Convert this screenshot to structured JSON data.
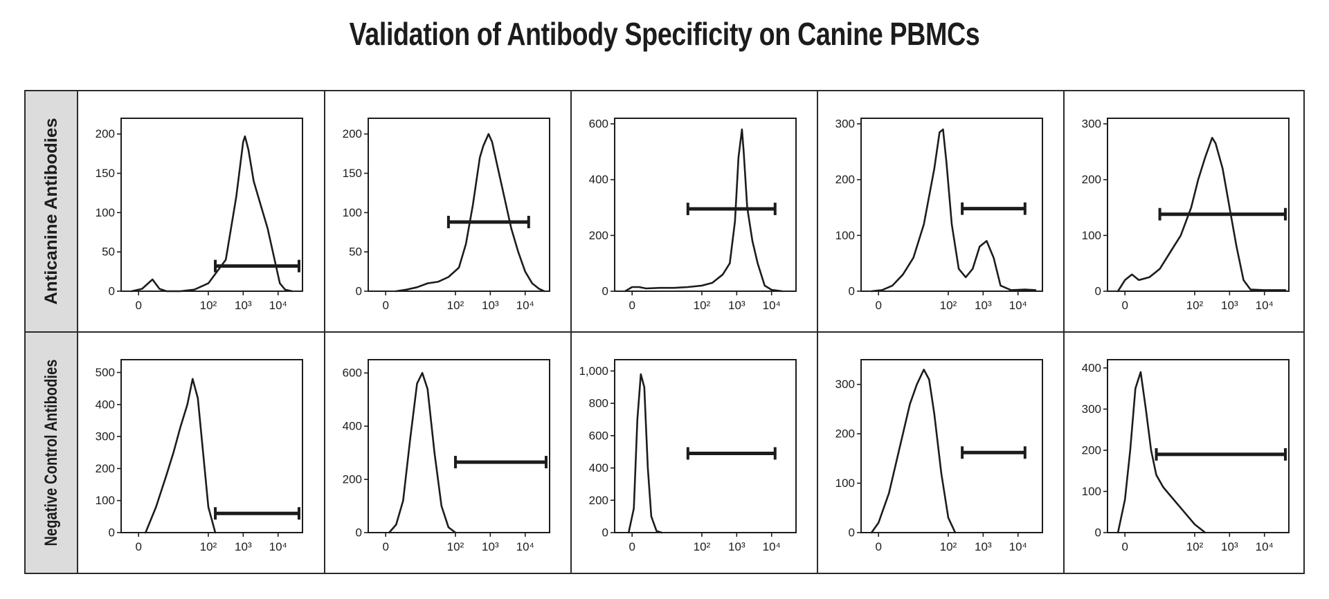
{
  "title": "Validation of Antibody Specificity on Canine PBMCs",
  "row_labels": [
    "Anticanine Antibodies",
    "Negative Control Antibodies"
  ],
  "x_tick_labels": [
    "0",
    "10²",
    "10³",
    "10⁴"
  ],
  "colors": {
    "line": "#1c1c1c",
    "row_label_bg": "#dcdcdc",
    "frame": "#2a2a2a"
  },
  "chart_data": [
    {
      "type": "line",
      "panel": "anticanine-1",
      "xscale": "log",
      "xlim": [
        -0.5,
        4.7
      ],
      "ylim": [
        0,
        220
      ],
      "yticks": [
        0,
        50,
        100,
        150,
        200
      ],
      "x": [
        -0.2,
        0.1,
        0.4,
        0.6,
        0.8,
        1.2,
        1.6,
        2.0,
        2.5,
        2.8,
        3.0,
        3.05,
        3.15,
        3.3,
        3.5,
        3.7,
        3.9,
        4.05,
        4.2,
        4.4
      ],
      "y": [
        0,
        3,
        15,
        3,
        0,
        0,
        2,
        10,
        40,
        120,
        190,
        197,
        180,
        140,
        110,
        80,
        40,
        10,
        2,
        0
      ],
      "gate": {
        "x": [
          2.2,
          4.6
        ],
        "y": 32
      }
    },
    {
      "type": "line",
      "panel": "anticanine-2",
      "xscale": "log",
      "xlim": [
        -0.5,
        4.7
      ],
      "ylim": [
        0,
        220
      ],
      "yticks": [
        0,
        50,
        100,
        150,
        200
      ],
      "x": [
        0.3,
        0.6,
        0.9,
        1.2,
        1.5,
        1.8,
        2.1,
        2.3,
        2.5,
        2.7,
        2.8,
        2.95,
        3.05,
        3.2,
        3.4,
        3.6,
        3.8,
        4.0,
        4.2,
        4.4,
        4.55
      ],
      "y": [
        0,
        2,
        5,
        10,
        12,
        18,
        30,
        60,
        110,
        170,
        185,
        200,
        190,
        160,
        120,
        80,
        50,
        25,
        10,
        3,
        0
      ],
      "gate": {
        "x": [
          1.8,
          4.1
        ],
        "y": 88
      }
    },
    {
      "type": "line",
      "panel": "anticanine-3",
      "xscale": "log",
      "xlim": [
        -0.5,
        4.7
      ],
      "ylim": [
        0,
        620
      ],
      "yticks": [
        0,
        200,
        400,
        600
      ],
      "x": [
        -0.2,
        0.0,
        0.2,
        0.4,
        0.8,
        1.2,
        1.6,
        2.0,
        2.3,
        2.6,
        2.8,
        2.95,
        3.05,
        3.15,
        3.2,
        3.3,
        3.45,
        3.6,
        3.8,
        4.0,
        4.3
      ],
      "y": [
        0,
        15,
        15,
        10,
        12,
        12,
        15,
        20,
        30,
        60,
        100,
        250,
        480,
        580,
        500,
        300,
        180,
        100,
        20,
        5,
        0
      ],
      "gate": {
        "x": [
          1.6,
          4.1
        ],
        "y": 295
      }
    },
    {
      "type": "line",
      "panel": "anticanine-4",
      "xscale": "log",
      "xlim": [
        -0.5,
        4.7
      ],
      "ylim": [
        0,
        310
      ],
      "yticks": [
        0,
        100,
        200,
        300
      ],
      "x": [
        -0.2,
        0.1,
        0.4,
        0.7,
        1.0,
        1.3,
        1.6,
        1.75,
        1.85,
        1.95,
        2.1,
        2.3,
        2.5,
        2.7,
        2.9,
        3.1,
        3.3,
        3.5,
        3.8,
        4.2,
        4.5
      ],
      "y": [
        0,
        2,
        10,
        30,
        60,
        120,
        220,
        285,
        290,
        230,
        120,
        40,
        25,
        40,
        80,
        90,
        60,
        10,
        2,
        3,
        2
      ],
      "gate": {
        "x": [
          2.4,
          4.2
        ],
        "y": 148
      }
    },
    {
      "type": "line",
      "panel": "anticanine-5",
      "xscale": "log",
      "xlim": [
        -0.5,
        4.7
      ],
      "ylim": [
        0,
        310
      ],
      "yticks": [
        0,
        100,
        200,
        300
      ],
      "x": [
        -0.2,
        0.0,
        0.2,
        0.4,
        0.7,
        1.0,
        1.3,
        1.6,
        1.9,
        2.1,
        2.3,
        2.5,
        2.6,
        2.8,
        3.0,
        3.2,
        3.4,
        3.6,
        4.0,
        4.6
      ],
      "y": [
        0,
        20,
        30,
        20,
        25,
        40,
        70,
        100,
        150,
        200,
        240,
        275,
        265,
        220,
        150,
        80,
        20,
        3,
        2,
        2
      ],
      "gate": {
        "x": [
          1.0,
          4.6
        ],
        "y": 138
      }
    },
    {
      "type": "line",
      "panel": "negative-1",
      "xscale": "log",
      "xlim": [
        -0.5,
        4.7
      ],
      "ylim": [
        0,
        540
      ],
      "yticks": [
        0,
        100,
        200,
        300,
        400,
        500
      ],
      "x": [
        0.2,
        0.5,
        0.8,
        1.0,
        1.2,
        1.4,
        1.55,
        1.7,
        1.85,
        2.0,
        2.2
      ],
      "y": [
        0,
        80,
        180,
        250,
        330,
        400,
        480,
        420,
        250,
        80,
        0
      ],
      "gate": {
        "x": [
          2.2,
          4.6
        ],
        "y": 60
      }
    },
    {
      "type": "line",
      "panel": "negative-2",
      "xscale": "log",
      "xlim": [
        -0.5,
        4.7
      ],
      "ylim": [
        0,
        650
      ],
      "yticks": [
        0,
        200,
        400,
        600
      ],
      "x": [
        0.1,
        0.3,
        0.5,
        0.7,
        0.9,
        1.05,
        1.2,
        1.4,
        1.6,
        1.8,
        2.0
      ],
      "y": [
        0,
        30,
        120,
        350,
        560,
        600,
        540,
        300,
        100,
        20,
        0
      ],
      "gate": {
        "x": [
          2.0,
          4.6
        ],
        "y": 265
      }
    },
    {
      "type": "line",
      "panel": "negative-3",
      "xscale": "log",
      "xlim": [
        -0.5,
        4.7
      ],
      "ylim": [
        0,
        1070
      ],
      "yticks": [
        0,
        200,
        400,
        600,
        800,
        1000
      ],
      "x": [
        -0.1,
        0.05,
        0.15,
        0.25,
        0.35,
        0.45,
        0.55,
        0.7,
        0.85
      ],
      "y": [
        0,
        150,
        700,
        980,
        900,
        400,
        100,
        10,
        0
      ],
      "gate": {
        "x": [
          1.6,
          4.1
        ],
        "y": 490
      }
    },
    {
      "type": "line",
      "panel": "negative-4",
      "xscale": "log",
      "xlim": [
        -0.5,
        4.7
      ],
      "ylim": [
        0,
        350
      ],
      "yticks": [
        0,
        100,
        200,
        300
      ],
      "x": [
        -0.2,
        0.0,
        0.3,
        0.6,
        0.9,
        1.1,
        1.3,
        1.45,
        1.6,
        1.8,
        2.0,
        2.2
      ],
      "y": [
        0,
        20,
        80,
        170,
        260,
        300,
        330,
        310,
        240,
        120,
        30,
        0
      ],
      "gate": {
        "x": [
          2.4,
          4.2
        ],
        "y": 162
      }
    },
    {
      "type": "line",
      "panel": "negative-5",
      "xscale": "log",
      "xlim": [
        -0.5,
        4.7
      ],
      "ylim": [
        0,
        420
      ],
      "yticks": [
        0,
        100,
        200,
        300,
        400
      ],
      "x": [
        -0.2,
        0.0,
        0.15,
        0.3,
        0.45,
        0.6,
        0.75,
        0.9,
        1.1,
        1.4,
        1.7,
        2.0,
        2.3
      ],
      "y": [
        0,
        80,
        200,
        350,
        390,
        300,
        200,
        140,
        110,
        80,
        50,
        20,
        0
      ],
      "gate": {
        "x": [
          0.9,
          4.6
        ],
        "y": 190
      }
    }
  ]
}
